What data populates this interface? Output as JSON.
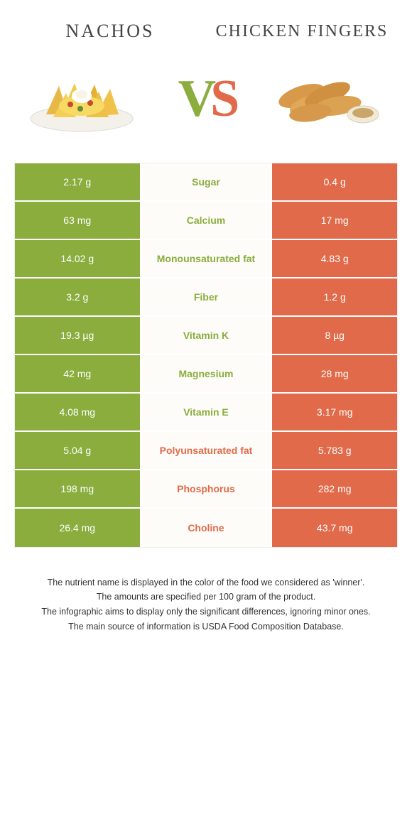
{
  "colors": {
    "left": "#8aad3e",
    "right": "#e06a4a",
    "mid_bg": "#fdfcf8",
    "text": "#333333"
  },
  "titles": {
    "left": "NACHOS",
    "right": "CHICKEN FINGERS"
  },
  "vs": {
    "v": "V",
    "s": "S"
  },
  "rows": [
    {
      "left": "2.17 g",
      "label": "Sugar",
      "right": "0.4 g",
      "winner": "left"
    },
    {
      "left": "63 mg",
      "label": "Calcium",
      "right": "17 mg",
      "winner": "left"
    },
    {
      "left": "14.02 g",
      "label": "Monounsaturated fat",
      "right": "4.83 g",
      "winner": "left"
    },
    {
      "left": "3.2 g",
      "label": "Fiber",
      "right": "1.2 g",
      "winner": "left"
    },
    {
      "left": "19.3 µg",
      "label": "Vitamin K",
      "right": "8 µg",
      "winner": "left"
    },
    {
      "left": "42 mg",
      "label": "Magnesium",
      "right": "28 mg",
      "winner": "left"
    },
    {
      "left": "4.08 mg",
      "label": "Vitamin E",
      "right": "3.17 mg",
      "winner": "left"
    },
    {
      "left": "5.04 g",
      "label": "Polyunsaturated fat",
      "right": "5.783 g",
      "winner": "right"
    },
    {
      "left": "198 mg",
      "label": "Phosphorus",
      "right": "282 mg",
      "winner": "right"
    },
    {
      "left": "26.4 mg",
      "label": "Choline",
      "right": "43.7 mg",
      "winner": "right"
    }
  ],
  "footer": [
    "The nutrient name is displayed in the color of the food we considered as 'winner'.",
    "The amounts are specified per 100 gram of the product.",
    "The infographic aims to display only the significant differences, ignoring minor ones.",
    "The main source of information is USDA Food Composition Database."
  ]
}
